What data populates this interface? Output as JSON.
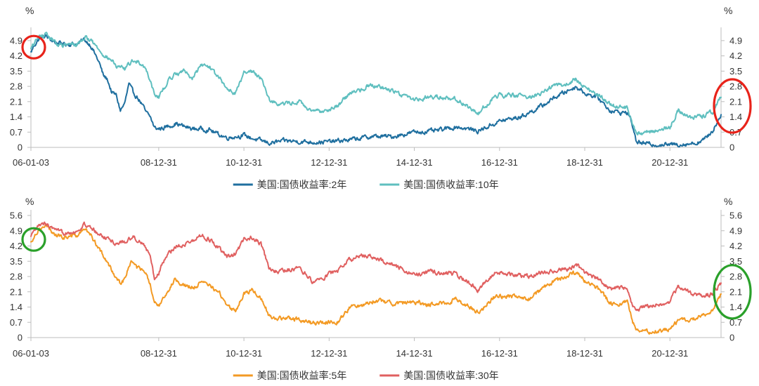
{
  "chart_data": [
    {
      "type": "line",
      "unit_left": "%",
      "unit_right": "%",
      "x_ticks": [
        "06-01-03",
        "08-12-31",
        "10-12-31",
        "12-12-31",
        "14-12-31",
        "16-12-31",
        "18-12-31",
        "20-12-31"
      ],
      "x_tick_years": [
        2006.0,
        2009.0,
        2011.0,
        2013.0,
        2015.0,
        2017.0,
        2019.0,
        2021.0
      ],
      "xlim": [
        2006.0,
        2022.2
      ],
      "y_ticks": [
        "0",
        "0.7",
        "1.4",
        "2.1",
        "2.8",
        "3.5",
        "4.2",
        "4.9"
      ],
      "ylim": [
        0,
        5.25
      ],
      "legend_position": "bottom-center",
      "series": [
        {
          "name": "美国:国债收益率:2年",
          "color": "#1f6f9f",
          "x": [
            2006.0,
            2006.08,
            2006.2,
            2006.35,
            2006.5,
            2006.6,
            2006.75,
            2006.9,
            2007.1,
            2007.25,
            2007.4,
            2007.5,
            2007.6,
            2007.7,
            2007.8,
            2007.9,
            2008.0,
            2008.1,
            2008.2,
            2008.3,
            2008.4,
            2008.5,
            2008.6,
            2008.7,
            2008.8,
            2008.9,
            2009.0,
            2009.2,
            2009.4,
            2009.6,
            2009.8,
            2010.0,
            2010.2,
            2010.4,
            2010.6,
            2010.8,
            2011.0,
            2011.3,
            2011.6,
            2012.0,
            2012.5,
            2013.0,
            2013.5,
            2014.0,
            2014.5,
            2015.0,
            2015.5,
            2016.0,
            2016.5,
            2017.0,
            2017.5,
            2018.0,
            2018.3,
            2018.6,
            2018.8,
            2019.0,
            2019.3,
            2019.6,
            2019.8,
            2020.0,
            2020.1,
            2020.2,
            2020.4,
            2020.7,
            2021.0,
            2021.3,
            2021.6,
            2021.8,
            2022.0,
            2022.2
          ],
          "y": [
            4.35,
            4.7,
            5.0,
            5.1,
            4.9,
            4.8,
            4.75,
            4.75,
            4.75,
            4.95,
            4.7,
            4.3,
            3.9,
            3.3,
            3.1,
            2.5,
            2.4,
            1.7,
            2.0,
            2.9,
            2.5,
            2.3,
            2.0,
            1.6,
            1.4,
            0.9,
            0.85,
            0.95,
            1.1,
            0.95,
            0.85,
            0.85,
            0.8,
            0.6,
            0.45,
            0.5,
            0.55,
            0.35,
            0.2,
            0.3,
            0.25,
            0.25,
            0.35,
            0.5,
            0.5,
            0.7,
            0.75,
            0.95,
            0.75,
            1.2,
            1.4,
            1.9,
            2.3,
            2.6,
            2.8,
            2.5,
            2.3,
            1.7,
            1.6,
            1.6,
            1.2,
            0.3,
            0.16,
            0.14,
            0.12,
            0.15,
            0.2,
            0.35,
            0.75,
            1.5
          ]
        },
        {
          "name": "美国:国债收益率:10年",
          "color": "#5fbfbf",
          "x": [
            2006.0,
            2006.08,
            2006.2,
            2006.35,
            2006.5,
            2006.6,
            2006.75,
            2006.9,
            2007.1,
            2007.25,
            2007.4,
            2007.5,
            2007.6,
            2007.7,
            2007.8,
            2007.9,
            2008.0,
            2008.2,
            2008.4,
            2008.6,
            2008.7,
            2008.8,
            2008.9,
            2009.0,
            2009.2,
            2009.4,
            2009.6,
            2009.8,
            2010.0,
            2010.2,
            2010.4,
            2010.6,
            2010.8,
            2011.0,
            2011.2,
            2011.4,
            2011.6,
            2011.8,
            2012.0,
            2012.3,
            2012.6,
            2012.9,
            2013.2,
            2013.5,
            2013.8,
            2014.0,
            2014.5,
            2015.0,
            2015.5,
            2016.0,
            2016.5,
            2016.9,
            2017.3,
            2017.7,
            2018.0,
            2018.3,
            2018.6,
            2018.8,
            2019.0,
            2019.3,
            2019.6,
            2019.8,
            2020.0,
            2020.1,
            2020.2,
            2020.4,
            2020.7,
            2021.0,
            2021.2,
            2021.5,
            2021.8,
            2022.0,
            2022.2
          ],
          "y": [
            4.5,
            4.8,
            5.1,
            5.15,
            4.95,
            4.75,
            4.65,
            4.7,
            4.75,
            5.05,
            4.95,
            4.7,
            4.5,
            4.3,
            4.1,
            4.0,
            3.7,
            3.6,
            4.0,
            3.85,
            3.6,
            3.1,
            2.5,
            2.3,
            3.0,
            3.4,
            3.5,
            3.2,
            3.8,
            3.7,
            3.2,
            2.7,
            2.5,
            3.4,
            3.5,
            3.2,
            2.2,
            2.0,
            2.0,
            2.1,
            1.6,
            1.7,
            1.9,
            2.5,
            2.7,
            2.9,
            2.6,
            2.2,
            2.35,
            2.2,
            1.55,
            2.4,
            2.4,
            2.3,
            2.5,
            2.85,
            2.9,
            3.15,
            2.75,
            2.4,
            2.0,
            1.8,
            1.85,
            1.2,
            0.7,
            0.65,
            0.8,
            0.95,
            1.7,
            1.35,
            1.45,
            1.6,
            2.3
          ]
        }
      ]
    },
    {
      "type": "line",
      "unit_left": "%",
      "unit_right": "%",
      "x_ticks": [
        "06-01-03",
        "08-12-31",
        "10-12-31",
        "12-12-31",
        "14-12-31",
        "16-12-31",
        "18-12-31",
        "20-12-31"
      ],
      "x_tick_years": [
        2006.0,
        2009.0,
        2011.0,
        2013.0,
        2015.0,
        2017.0,
        2019.0,
        2021.0
      ],
      "xlim": [
        2006.0,
        2022.2
      ],
      "y_ticks": [
        "0",
        "0.7",
        "1.4",
        "2.1",
        "2.8",
        "3.5",
        "4.2",
        "4.9",
        "5.6"
      ],
      "ylim": [
        0,
        5.6
      ],
      "legend_position": "bottom-center",
      "series": [
        {
          "name": "美国:国债收益率:5年",
          "color": "#f39a24",
          "x": [
            2006.0,
            2006.08,
            2006.2,
            2006.35,
            2006.5,
            2006.6,
            2006.75,
            2006.9,
            2007.1,
            2007.25,
            2007.4,
            2007.5,
            2007.6,
            2007.7,
            2007.8,
            2007.9,
            2008.0,
            2008.1,
            2008.2,
            2008.35,
            2008.5,
            2008.6,
            2008.7,
            2008.8,
            2008.9,
            2009.0,
            2009.2,
            2009.4,
            2009.6,
            2009.8,
            2010.0,
            2010.2,
            2010.4,
            2010.6,
            2010.8,
            2011.0,
            2011.2,
            2011.4,
            2011.6,
            2011.8,
            2012.0,
            2012.3,
            2012.6,
            2012.9,
            2013.2,
            2013.5,
            2013.8,
            2014.0,
            2014.5,
            2015.0,
            2015.5,
            2016.0,
            2016.5,
            2016.9,
            2017.3,
            2017.7,
            2018.0,
            2018.3,
            2018.6,
            2018.8,
            2019.0,
            2019.3,
            2019.6,
            2019.8,
            2020.0,
            2020.1,
            2020.2,
            2020.4,
            2020.7,
            2021.0,
            2021.2,
            2021.5,
            2021.8,
            2022.0,
            2022.2
          ],
          "y": [
            4.35,
            4.7,
            5.0,
            5.1,
            4.85,
            4.7,
            4.6,
            4.65,
            4.7,
            5.0,
            4.7,
            4.4,
            4.1,
            3.7,
            3.4,
            3.1,
            2.8,
            2.5,
            2.7,
            3.5,
            3.2,
            3.1,
            2.9,
            2.4,
            1.5,
            1.5,
            2.1,
            2.7,
            2.4,
            2.3,
            2.5,
            2.4,
            2.1,
            1.5,
            1.2,
            2.0,
            2.2,
            1.8,
            1.0,
            0.9,
            0.85,
            0.85,
            0.65,
            0.7,
            0.75,
            1.4,
            1.5,
            1.7,
            1.6,
            1.6,
            1.5,
            1.75,
            1.15,
            1.9,
            1.9,
            1.8,
            2.2,
            2.6,
            2.8,
            3.0,
            2.6,
            2.25,
            1.6,
            1.5,
            1.7,
            0.9,
            0.35,
            0.3,
            0.3,
            0.4,
            0.8,
            0.8,
            1.0,
            1.3,
            2.0
          ]
        },
        {
          "name": "美国:国债收益率:30年",
          "color": "#e06060",
          "x": [
            2006.0,
            2006.08,
            2006.2,
            2006.35,
            2006.5,
            2006.6,
            2006.75,
            2006.9,
            2007.1,
            2007.25,
            2007.4,
            2007.5,
            2007.6,
            2007.7,
            2007.8,
            2007.9,
            2008.0,
            2008.2,
            2008.4,
            2008.6,
            2008.7,
            2008.8,
            2008.9,
            2009.0,
            2009.2,
            2009.4,
            2009.6,
            2009.8,
            2010.0,
            2010.2,
            2010.4,
            2010.6,
            2010.8,
            2011.0,
            2011.2,
            2011.4,
            2011.6,
            2011.8,
            2012.0,
            2012.3,
            2012.6,
            2012.9,
            2013.2,
            2013.5,
            2013.8,
            2014.0,
            2014.5,
            2015.0,
            2015.5,
            2016.0,
            2016.5,
            2016.9,
            2017.3,
            2017.7,
            2018.0,
            2018.3,
            2018.6,
            2018.8,
            2019.0,
            2019.3,
            2019.6,
            2019.8,
            2020.0,
            2020.1,
            2020.2,
            2020.4,
            2020.7,
            2021.0,
            2021.2,
            2021.5,
            2021.8,
            2022.0,
            2022.2
          ],
          "y": [
            4.6,
            4.85,
            5.15,
            5.2,
            5.0,
            4.85,
            4.8,
            4.85,
            4.85,
            5.2,
            5.0,
            4.9,
            4.75,
            4.6,
            4.55,
            4.45,
            4.3,
            4.4,
            4.6,
            4.4,
            4.1,
            3.7,
            2.7,
            3.0,
            3.8,
            4.2,
            4.3,
            4.4,
            4.7,
            4.5,
            4.1,
            3.7,
            3.8,
            4.5,
            4.6,
            4.3,
            3.1,
            3.0,
            3.1,
            3.2,
            2.6,
            2.8,
            3.1,
            3.6,
            3.8,
            3.7,
            3.3,
            2.9,
            3.0,
            2.9,
            2.2,
            3.0,
            2.9,
            2.8,
            3.0,
            3.1,
            3.1,
            3.35,
            3.0,
            2.7,
            2.2,
            2.3,
            2.3,
            1.6,
            1.2,
            1.4,
            1.5,
            1.65,
            2.4,
            2.0,
            1.9,
            2.0,
            2.5
          ]
        }
      ]
    }
  ],
  "annotations": [
    {
      "panel": 0,
      "side": "left",
      "color": "#e8231a",
      "at_year": 2006.0,
      "at_value": 4.6
    },
    {
      "panel": 0,
      "side": "right",
      "color": "#e8231a",
      "at_year": 2022.2,
      "at_value": 1.9
    },
    {
      "panel": 1,
      "side": "left",
      "color": "#2aa02a",
      "at_year": 2006.0,
      "at_value": 4.5
    },
    {
      "panel": 1,
      "side": "right",
      "color": "#2aa02a",
      "at_year": 2022.2,
      "at_value": 2.1
    }
  ]
}
